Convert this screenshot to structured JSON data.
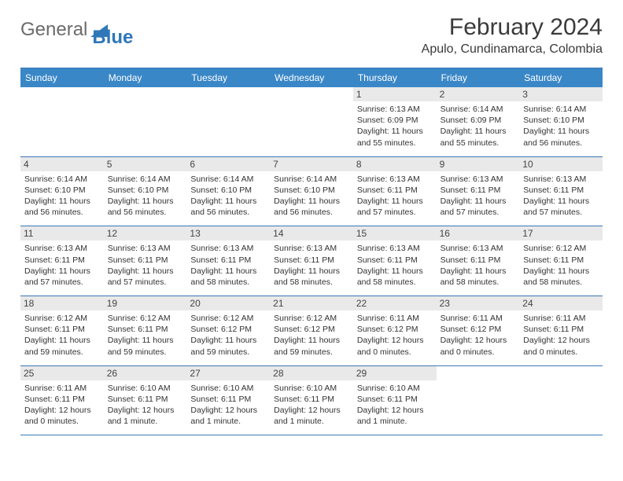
{
  "logo": {
    "text_general": "General",
    "text_blue": "Blue"
  },
  "header": {
    "title": "February 2024",
    "subtitle": "Apulo, Cundinamarca, Colombia"
  },
  "colors": {
    "header_bar": "#3a87c7",
    "border": "#3a78b5",
    "num_bg": "#e9e9e9",
    "text": "#333333",
    "logo_gray": "#6b6b6b",
    "logo_blue": "#2f77b8"
  },
  "weekdays": [
    "Sunday",
    "Monday",
    "Tuesday",
    "Wednesday",
    "Thursday",
    "Friday",
    "Saturday"
  ],
  "weeks": [
    [
      null,
      null,
      null,
      null,
      {
        "num": "1",
        "sunrise": "Sunrise: 6:13 AM",
        "sunset": "Sunset: 6:09 PM",
        "daylight1": "Daylight: 11 hours",
        "daylight2": "and 55 minutes."
      },
      {
        "num": "2",
        "sunrise": "Sunrise: 6:14 AM",
        "sunset": "Sunset: 6:09 PM",
        "daylight1": "Daylight: 11 hours",
        "daylight2": "and 55 minutes."
      },
      {
        "num": "3",
        "sunrise": "Sunrise: 6:14 AM",
        "sunset": "Sunset: 6:10 PM",
        "daylight1": "Daylight: 11 hours",
        "daylight2": "and 56 minutes."
      }
    ],
    [
      {
        "num": "4",
        "sunrise": "Sunrise: 6:14 AM",
        "sunset": "Sunset: 6:10 PM",
        "daylight1": "Daylight: 11 hours",
        "daylight2": "and 56 minutes."
      },
      {
        "num": "5",
        "sunrise": "Sunrise: 6:14 AM",
        "sunset": "Sunset: 6:10 PM",
        "daylight1": "Daylight: 11 hours",
        "daylight2": "and 56 minutes."
      },
      {
        "num": "6",
        "sunrise": "Sunrise: 6:14 AM",
        "sunset": "Sunset: 6:10 PM",
        "daylight1": "Daylight: 11 hours",
        "daylight2": "and 56 minutes."
      },
      {
        "num": "7",
        "sunrise": "Sunrise: 6:14 AM",
        "sunset": "Sunset: 6:10 PM",
        "daylight1": "Daylight: 11 hours",
        "daylight2": "and 56 minutes."
      },
      {
        "num": "8",
        "sunrise": "Sunrise: 6:13 AM",
        "sunset": "Sunset: 6:11 PM",
        "daylight1": "Daylight: 11 hours",
        "daylight2": "and 57 minutes."
      },
      {
        "num": "9",
        "sunrise": "Sunrise: 6:13 AM",
        "sunset": "Sunset: 6:11 PM",
        "daylight1": "Daylight: 11 hours",
        "daylight2": "and 57 minutes."
      },
      {
        "num": "10",
        "sunrise": "Sunrise: 6:13 AM",
        "sunset": "Sunset: 6:11 PM",
        "daylight1": "Daylight: 11 hours",
        "daylight2": "and 57 minutes."
      }
    ],
    [
      {
        "num": "11",
        "sunrise": "Sunrise: 6:13 AM",
        "sunset": "Sunset: 6:11 PM",
        "daylight1": "Daylight: 11 hours",
        "daylight2": "and 57 minutes."
      },
      {
        "num": "12",
        "sunrise": "Sunrise: 6:13 AM",
        "sunset": "Sunset: 6:11 PM",
        "daylight1": "Daylight: 11 hours",
        "daylight2": "and 57 minutes."
      },
      {
        "num": "13",
        "sunrise": "Sunrise: 6:13 AM",
        "sunset": "Sunset: 6:11 PM",
        "daylight1": "Daylight: 11 hours",
        "daylight2": "and 58 minutes."
      },
      {
        "num": "14",
        "sunrise": "Sunrise: 6:13 AM",
        "sunset": "Sunset: 6:11 PM",
        "daylight1": "Daylight: 11 hours",
        "daylight2": "and 58 minutes."
      },
      {
        "num": "15",
        "sunrise": "Sunrise: 6:13 AM",
        "sunset": "Sunset: 6:11 PM",
        "daylight1": "Daylight: 11 hours",
        "daylight2": "and 58 minutes."
      },
      {
        "num": "16",
        "sunrise": "Sunrise: 6:13 AM",
        "sunset": "Sunset: 6:11 PM",
        "daylight1": "Daylight: 11 hours",
        "daylight2": "and 58 minutes."
      },
      {
        "num": "17",
        "sunrise": "Sunrise: 6:12 AM",
        "sunset": "Sunset: 6:11 PM",
        "daylight1": "Daylight: 11 hours",
        "daylight2": "and 58 minutes."
      }
    ],
    [
      {
        "num": "18",
        "sunrise": "Sunrise: 6:12 AM",
        "sunset": "Sunset: 6:11 PM",
        "daylight1": "Daylight: 11 hours",
        "daylight2": "and 59 minutes."
      },
      {
        "num": "19",
        "sunrise": "Sunrise: 6:12 AM",
        "sunset": "Sunset: 6:11 PM",
        "daylight1": "Daylight: 11 hours",
        "daylight2": "and 59 minutes."
      },
      {
        "num": "20",
        "sunrise": "Sunrise: 6:12 AM",
        "sunset": "Sunset: 6:12 PM",
        "daylight1": "Daylight: 11 hours",
        "daylight2": "and 59 minutes."
      },
      {
        "num": "21",
        "sunrise": "Sunrise: 6:12 AM",
        "sunset": "Sunset: 6:12 PM",
        "daylight1": "Daylight: 11 hours",
        "daylight2": "and 59 minutes."
      },
      {
        "num": "22",
        "sunrise": "Sunrise: 6:11 AM",
        "sunset": "Sunset: 6:12 PM",
        "daylight1": "Daylight: 12 hours",
        "daylight2": "and 0 minutes."
      },
      {
        "num": "23",
        "sunrise": "Sunrise: 6:11 AM",
        "sunset": "Sunset: 6:12 PM",
        "daylight1": "Daylight: 12 hours",
        "daylight2": "and 0 minutes."
      },
      {
        "num": "24",
        "sunrise": "Sunrise: 6:11 AM",
        "sunset": "Sunset: 6:11 PM",
        "daylight1": "Daylight: 12 hours",
        "daylight2": "and 0 minutes."
      }
    ],
    [
      {
        "num": "25",
        "sunrise": "Sunrise: 6:11 AM",
        "sunset": "Sunset: 6:11 PM",
        "daylight1": "Daylight: 12 hours",
        "daylight2": "and 0 minutes."
      },
      {
        "num": "26",
        "sunrise": "Sunrise: 6:10 AM",
        "sunset": "Sunset: 6:11 PM",
        "daylight1": "Daylight: 12 hours",
        "daylight2": "and 1 minute."
      },
      {
        "num": "27",
        "sunrise": "Sunrise: 6:10 AM",
        "sunset": "Sunset: 6:11 PM",
        "daylight1": "Daylight: 12 hours",
        "daylight2": "and 1 minute."
      },
      {
        "num": "28",
        "sunrise": "Sunrise: 6:10 AM",
        "sunset": "Sunset: 6:11 PM",
        "daylight1": "Daylight: 12 hours",
        "daylight2": "and 1 minute."
      },
      {
        "num": "29",
        "sunrise": "Sunrise: 6:10 AM",
        "sunset": "Sunset: 6:11 PM",
        "daylight1": "Daylight: 12 hours",
        "daylight2": "and 1 minute."
      },
      null,
      null
    ]
  ]
}
